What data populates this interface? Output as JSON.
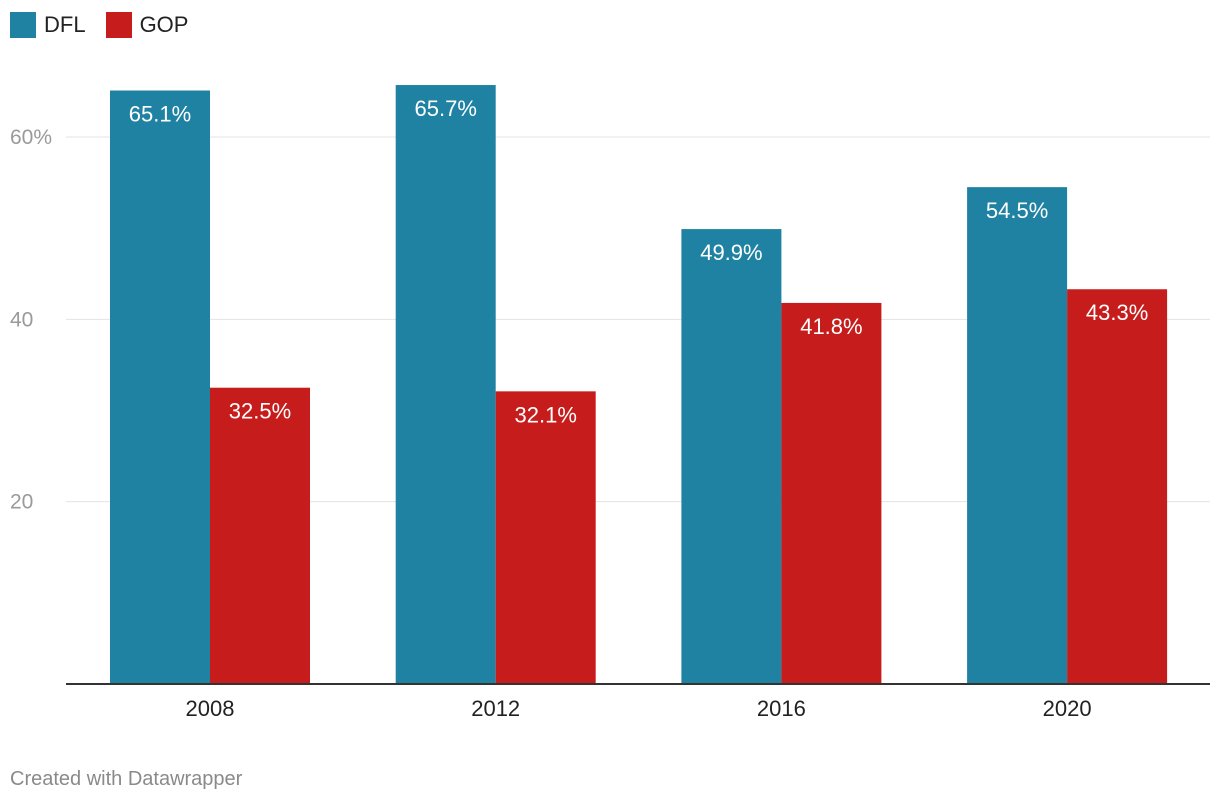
{
  "legend": [
    {
      "label": "DFL",
      "color": "#1f82a2"
    },
    {
      "label": "GOP",
      "color": "#c71c1c"
    }
  ],
  "footer": "Created with Datawrapper",
  "chart_data": {
    "type": "bar",
    "categories": [
      "2008",
      "2012",
      "2016",
      "2020"
    ],
    "series": [
      {
        "name": "DFL",
        "values": [
          65.1,
          65.7,
          49.9,
          54.5
        ],
        "labels": [
          "65.1%",
          "65.7%",
          "49.9%",
          "54.5%"
        ],
        "color": "#1f82a2"
      },
      {
        "name": "GOP",
        "values": [
          32.5,
          32.1,
          41.8,
          43.3
        ],
        "labels": [
          "32.5%",
          "32.1%",
          "41.8%",
          "43.3%"
        ],
        "color": "#c71c1c"
      }
    ],
    "y_ticks": [
      {
        "value": 20,
        "label": "20"
      },
      {
        "value": 40,
        "label": "40"
      },
      {
        "value": 60,
        "label": "60%"
      }
    ],
    "ylim": [
      0,
      70
    ],
    "grid": true,
    "legend_position": "top-left"
  }
}
